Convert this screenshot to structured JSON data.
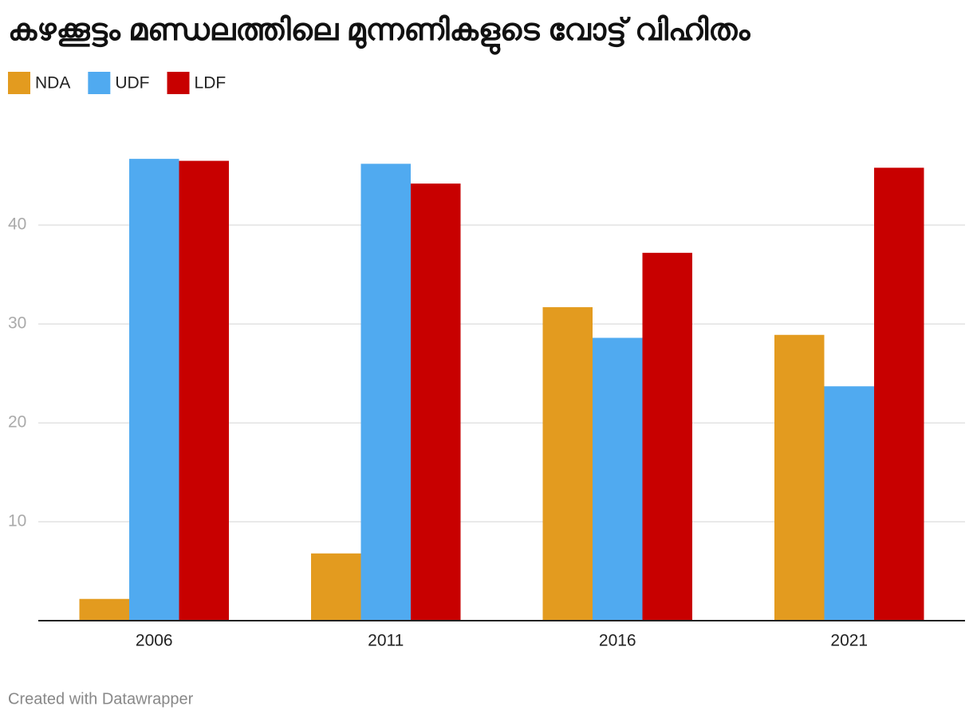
{
  "chart_data": {
    "type": "bar",
    "title": "കഴക്കൂട്ടം മണ്ഡലത്തിലെ മുന്നണികളുടെ വോട്ട് വിഹിതം",
    "categories": [
      "2006",
      "2011",
      "2016",
      "2021"
    ],
    "series": [
      {
        "name": "NDA",
        "color": "#e39b1f",
        "values": [
          2.2,
          6.8,
          31.7,
          28.9
        ]
      },
      {
        "name": "UDF",
        "color": "#50aaf0",
        "values": [
          46.7,
          46.2,
          28.6,
          23.7
        ]
      },
      {
        "name": "LDF",
        "color": "#c80000",
        "values": [
          46.5,
          44.2,
          37.2,
          45.8
        ]
      }
    ],
    "ylim": [
      0,
      48
    ],
    "yticks": [
      10,
      20,
      30,
      40
    ],
    "grid": true,
    "legend": "top-left",
    "credit": "Created with Datawrapper"
  }
}
